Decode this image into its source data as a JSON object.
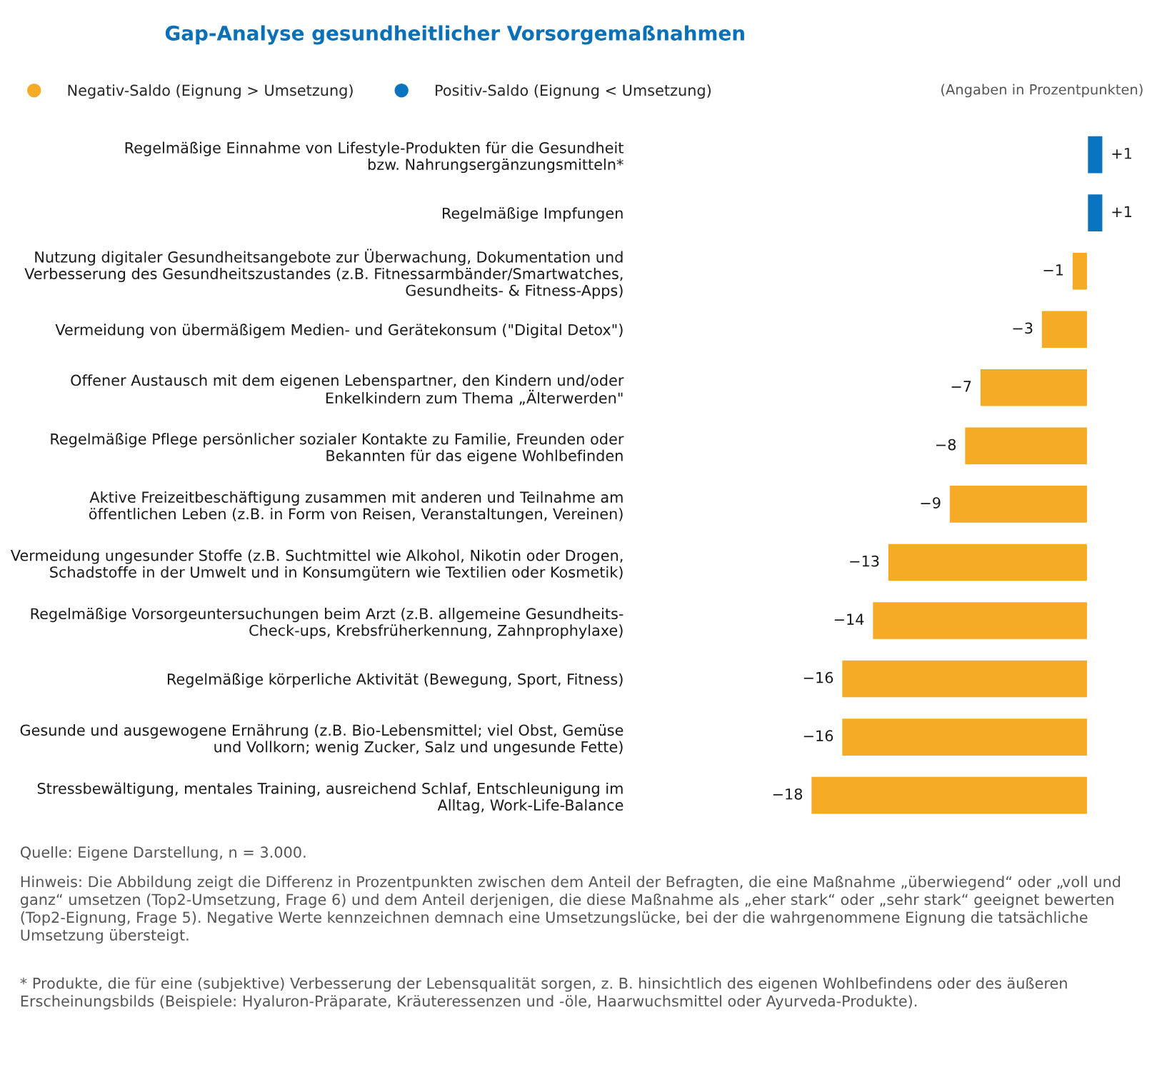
{
  "chart_data": {
    "type": "bar",
    "orientation": "horizontal",
    "title": "Gap-Analyse gesundheitlicher Vorsorgemaßnahmen",
    "categories": [
      "Regelmäßige Einnahme von Lifestyle-Produkten für die Gesundheit\nbzw. Nahrungsergänzungsmitteln*",
      "Regelmäßige Impfungen",
      "Nutzung digitaler Gesundheitsangebote zur Überwachung, Dokumentation und\nVerbesserung des Gesundheitszustandes (z.B. Fitnessarmbänder/Smartwatches,\nGesundheits- & Fitness-Apps)",
      "Vermeidung von übermäßigem Medien- und Gerätekonsum (\"Digital Detox\")",
      "Offener Austausch mit dem eigenen Lebenspartner, den Kindern und/oder\nEnkelkindern zum Thema „Älterwerden\"",
      "Regelmäßige Pflege persönlicher sozialer Kontakte zu Familie, Freunden oder\nBekannten für das eigene Wohlbefinden",
      "Aktive Freizeitbeschäftigung zusammen mit anderen und Teilnahme am\nöffentlichen Leben (z.B. in Form von Reisen, Veranstaltungen, Vereinen)",
      "Vermeidung ungesunder Stoffe (z.B. Suchtmittel wie Alkohol, Nikotin oder Drogen,\nSchadstoffe in der Umwelt und in Konsumgütern wie Textilien oder Kosmetik)",
      "Regelmäßige Vorsorgeuntersuchungen beim Arzt (z.B. allgemeine Gesundheits-\nCheck-ups, Krebsfrüherkennung, Zahnprophylaxe)",
      "Regelmäßige körperliche Aktivität (Bewegung, Sport, Fitness)",
      "Gesunde und ausgewogene Ernährung (z.B. Bio-Lebensmittel; viel Obst, Gemüse\nund Vollkorn; wenig Zucker, Salz und ungesunde Fette)",
      "Stressbewältigung, mentales Training, ausreichend Schlaf, Entschleunigung im\nAlltag, Work-Life-Balance"
    ],
    "series": [
      {
        "name": "Negativ-Saldo (Eignung > Umsetzung)",
        "color": "#f5ab25",
        "values": [
          null,
          null,
          -1,
          -3,
          -7,
          -8,
          -9,
          -13,
          -14,
          -16,
          -16,
          -18
        ],
        "value_labels": [
          null,
          null,
          "−1",
          "−3",
          "−7",
          "−8",
          "−9",
          "−13",
          "−14",
          "−16",
          "−16",
          "−18"
        ]
      },
      {
        "name": "Positiv-Saldo (Eignung < Umsetzung)",
        "color": "#0a74c0",
        "values": [
          1,
          1,
          null,
          null,
          null,
          null,
          null,
          null,
          null,
          null,
          null,
          null
        ],
        "value_labels": [
          "+1",
          "+1",
          null,
          null,
          null,
          null,
          null,
          null,
          null,
          null,
          null,
          null
        ]
      }
    ],
    "legend": "top left",
    "marker": "circle",
    "grid": false,
    "tick_labels": "y",
    "annotations": [
      "(Angaben in Prozentpunkten)",
      "Quelle: Eigene Darstellung, n = 3.000.",
      "Hinweis: Die Abbildung zeigt die Differenz in Prozentpunkten zwischen dem Anteil der Befragten, die eine Maßnahme „überwiegend“ oder „voll und ganz“ umsetzen (Top2-Umsetzung, Frage 6) und dem Anteil derjenigen, die diese Maßnahme als „eher stark“ oder „sehr stark“ geeignet bewerten (Top2-Eignung, Frage 5). Negative Werte kennzeichnen demnach eine Umsetzungslücke, bei der die wahrgenommene Eignung die tatsächliche Umsetzung übersteigt.",
      "* Produkte, die für eine (subjektive) Verbesserung der Lebensqualität sorgen, z. B. hinsichtlich des eigenen Wohlbefindens oder des äußeren Erscheinungsbilds (Beispiele: Hyaluron-Präparate, Kräuteressenzen und -öle, Haarwuchsmittel oder Ayurveda-Produkte)."
    ]
  }
}
